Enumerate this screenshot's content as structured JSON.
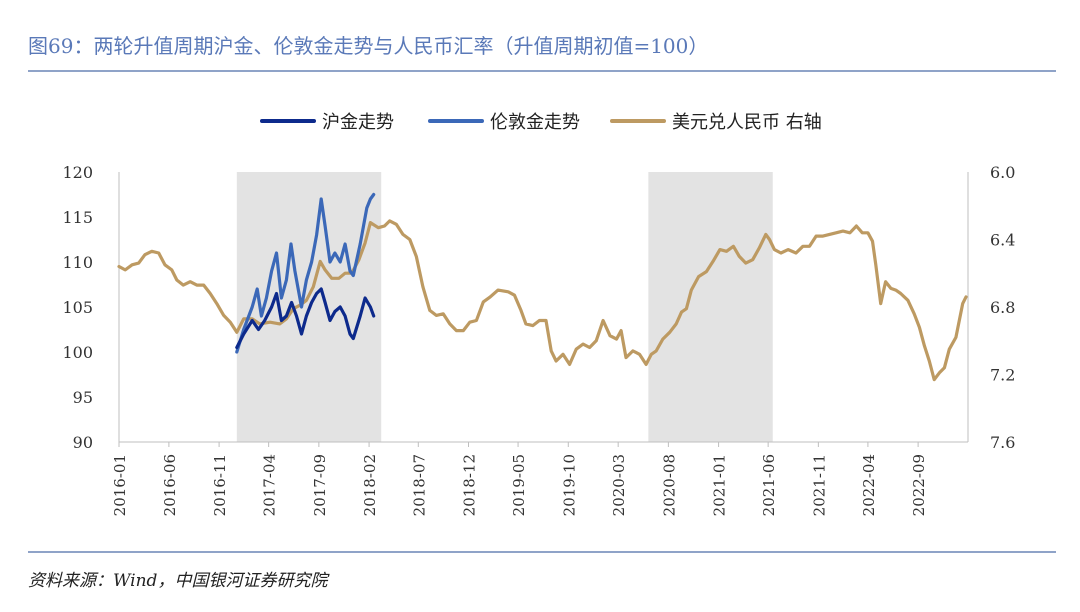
{
  "title": "图69：两轮升值周期沪金、伦敦金走势与人民币汇率（升值周期初值=100）",
  "source": "资料来源：Wind，中国银河证券研究院",
  "colors": {
    "sge": "#0d2a8c",
    "lbma": "#3b68b8",
    "usdcny": "#bd9a62",
    "shade": "#e3e3e3",
    "axis": "#bfbfbf",
    "rule": "#8fa3c8",
    "title": "#5a79b8"
  },
  "chart_data": {
    "type": "line",
    "legend": [
      "沪金走势",
      "伦敦金走势",
      "美元兑人民币 右轴"
    ],
    "x_ticks": [
      "2016-01",
      "2016-06",
      "2016-11",
      "2017-04",
      "2017-09",
      "2018-02",
      "2018-07",
      "2018-12",
      "2019-05",
      "2019-10",
      "2020-03",
      "2020-08",
      "2021-01",
      "2021-06",
      "2021-11",
      "2022-04",
      "2022-09"
    ],
    "y_left": {
      "range": [
        90,
        120
      ],
      "ticks": [
        "90",
        "95",
        "100",
        "105",
        "110",
        "115",
        "120"
      ]
    },
    "y_right": {
      "range": [
        7.6,
        6.0
      ],
      "inverted": true,
      "ticks": [
        "6.0",
        "6.4",
        "6.8",
        "7.2",
        "7.6"
      ]
    },
    "shaded_periods": [
      {
        "start": "2016-12-25",
        "end": "2018-03-10"
      },
      {
        "start": "2020-06-01",
        "end": "2021-06-15"
      }
    ],
    "series": [
      {
        "name": "沪金走势",
        "axis": "left",
        "points": [
          [
            "2016-12-25",
            100.5
          ],
          [
            "2017-01-15",
            102
          ],
          [
            "2017-02-10",
            103.5
          ],
          [
            "2017-03-01",
            102.5
          ],
          [
            "2017-03-20",
            103.5
          ],
          [
            "2017-04-10",
            105
          ],
          [
            "2017-04-25",
            106.5
          ],
          [
            "2017-05-10",
            103.5
          ],
          [
            "2017-05-25",
            104
          ],
          [
            "2017-06-10",
            105.5
          ],
          [
            "2017-06-25",
            104
          ],
          [
            "2017-07-10",
            102
          ],
          [
            "2017-07-25",
            104
          ],
          [
            "2017-08-10",
            105.5
          ],
          [
            "2017-08-25",
            106.5
          ],
          [
            "2017-09-08",
            107
          ],
          [
            "2017-09-20",
            105.5
          ],
          [
            "2017-10-05",
            103.5
          ],
          [
            "2017-10-20",
            104.5
          ],
          [
            "2017-11-05",
            105
          ],
          [
            "2017-11-20",
            104
          ],
          [
            "2017-12-05",
            102
          ],
          [
            "2017-12-15",
            101.5
          ],
          [
            "2018-01-05",
            104
          ],
          [
            "2018-01-20",
            106
          ],
          [
            "2018-02-05",
            105
          ],
          [
            "2018-02-15",
            104
          ]
        ]
      },
      {
        "name": "伦敦金走势",
        "axis": "left",
        "points": [
          [
            "2016-12-25",
            100
          ],
          [
            "2017-01-15",
            102.5
          ],
          [
            "2017-02-10",
            105
          ],
          [
            "2017-02-25",
            107
          ],
          [
            "2017-03-10",
            104
          ],
          [
            "2017-03-25",
            106
          ],
          [
            "2017-04-10",
            109
          ],
          [
            "2017-04-25",
            111
          ],
          [
            "2017-05-10",
            106
          ],
          [
            "2017-05-25",
            108
          ],
          [
            "2017-06-08",
            112
          ],
          [
            "2017-06-20",
            109
          ],
          [
            "2017-07-10",
            105
          ],
          [
            "2017-07-25",
            108
          ],
          [
            "2017-08-10",
            110
          ],
          [
            "2017-08-25",
            113
          ],
          [
            "2017-09-08",
            117
          ],
          [
            "2017-09-20",
            114
          ],
          [
            "2017-10-05",
            110
          ],
          [
            "2017-10-20",
            111
          ],
          [
            "2017-11-05",
            110
          ],
          [
            "2017-11-20",
            112
          ],
          [
            "2017-12-05",
            109
          ],
          [
            "2017-12-15",
            108.5
          ],
          [
            "2018-01-05",
            112
          ],
          [
            "2018-01-15",
            114
          ],
          [
            "2018-01-25",
            116
          ],
          [
            "2018-02-05",
            117
          ],
          [
            "2018-02-15",
            117.5
          ]
        ]
      },
      {
        "name": "美元兑人民币 右轴",
        "axis": "right",
        "points": [
          [
            "2016-01-01",
            6.56
          ],
          [
            "2016-01-20",
            6.58
          ],
          [
            "2016-02-10",
            6.55
          ],
          [
            "2016-03-01",
            6.54
          ],
          [
            "2016-03-20",
            6.49
          ],
          [
            "2016-04-10",
            6.47
          ],
          [
            "2016-05-01",
            6.48
          ],
          [
            "2016-05-20",
            6.55
          ],
          [
            "2016-06-10",
            6.58
          ],
          [
            "2016-06-25",
            6.64
          ],
          [
            "2016-07-15",
            6.67
          ],
          [
            "2016-08-05",
            6.65
          ],
          [
            "2016-08-25",
            6.67
          ],
          [
            "2016-09-15",
            6.67
          ],
          [
            "2016-10-05",
            6.72
          ],
          [
            "2016-10-25",
            6.78
          ],
          [
            "2016-11-15",
            6.85
          ],
          [
            "2016-12-05",
            6.89
          ],
          [
            "2016-12-25",
            6.95
          ],
          [
            "2017-01-15",
            6.87
          ],
          [
            "2017-02-10",
            6.87
          ],
          [
            "2017-03-05",
            6.9
          ],
          [
            "2017-04-05",
            6.89
          ],
          [
            "2017-05-05",
            6.9
          ],
          [
            "2017-05-25",
            6.87
          ],
          [
            "2017-06-15",
            6.81
          ],
          [
            "2017-07-05",
            6.79
          ],
          [
            "2017-07-25",
            6.76
          ],
          [
            "2017-08-15",
            6.68
          ],
          [
            "2017-09-05",
            6.53
          ],
          [
            "2017-09-20",
            6.58
          ],
          [
            "2017-10-10",
            6.63
          ],
          [
            "2017-11-01",
            6.63
          ],
          [
            "2017-11-20",
            6.6
          ],
          [
            "2017-12-10",
            6.6
          ],
          [
            "2018-01-01",
            6.52
          ],
          [
            "2018-01-20",
            6.42
          ],
          [
            "2018-02-05",
            6.3
          ],
          [
            "2018-03-01",
            6.33
          ],
          [
            "2018-03-20",
            6.32
          ],
          [
            "2018-04-05",
            6.29
          ],
          [
            "2018-04-25",
            6.31
          ],
          [
            "2018-05-15",
            6.37
          ],
          [
            "2018-06-05",
            6.4
          ],
          [
            "2018-06-25",
            6.5
          ],
          [
            "2018-07-15",
            6.68
          ],
          [
            "2018-08-05",
            6.82
          ],
          [
            "2018-08-25",
            6.85
          ],
          [
            "2018-09-15",
            6.84
          ],
          [
            "2018-10-05",
            6.9
          ],
          [
            "2018-10-25",
            6.94
          ],
          [
            "2018-11-15",
            6.94
          ],
          [
            "2018-12-05",
            6.89
          ],
          [
            "2018-12-25",
            6.88
          ],
          [
            "2019-01-15",
            6.77
          ],
          [
            "2019-02-05",
            6.74
          ],
          [
            "2019-03-01",
            6.7
          ],
          [
            "2019-04-01",
            6.71
          ],
          [
            "2019-04-20",
            6.73
          ],
          [
            "2019-05-10",
            6.82
          ],
          [
            "2019-05-25",
            6.9
          ],
          [
            "2019-06-15",
            6.91
          ],
          [
            "2019-07-05",
            6.88
          ],
          [
            "2019-07-25",
            6.88
          ],
          [
            "2019-08-10",
            7.06
          ],
          [
            "2019-08-25",
            7.12
          ],
          [
            "2019-09-15",
            7.08
          ],
          [
            "2019-10-05",
            7.14
          ],
          [
            "2019-10-25",
            7.05
          ],
          [
            "2019-11-15",
            7.02
          ],
          [
            "2019-12-05",
            7.04
          ],
          [
            "2019-12-25",
            7.0
          ],
          [
            "2020-01-15",
            6.88
          ],
          [
            "2020-02-05",
            6.97
          ],
          [
            "2020-02-25",
            6.99
          ],
          [
            "2020-03-10",
            6.94
          ],
          [
            "2020-03-25",
            7.1
          ],
          [
            "2020-04-15",
            7.06
          ],
          [
            "2020-05-05",
            7.08
          ],
          [
            "2020-05-25",
            7.14
          ],
          [
            "2020-06-10",
            7.08
          ],
          [
            "2020-06-25",
            7.06
          ],
          [
            "2020-07-15",
            6.99
          ],
          [
            "2020-08-05",
            6.95
          ],
          [
            "2020-08-25",
            6.9
          ],
          [
            "2020-09-10",
            6.83
          ],
          [
            "2020-09-25",
            6.81
          ],
          [
            "2020-10-10",
            6.7
          ],
          [
            "2020-11-01",
            6.62
          ],
          [
            "2020-11-25",
            6.59
          ],
          [
            "2020-12-15",
            6.53
          ],
          [
            "2021-01-05",
            6.46
          ],
          [
            "2021-01-25",
            6.47
          ],
          [
            "2021-02-15",
            6.44
          ],
          [
            "2021-03-05",
            6.5
          ],
          [
            "2021-03-25",
            6.54
          ],
          [
            "2021-04-15",
            6.52
          ],
          [
            "2021-05-05",
            6.45
          ],
          [
            "2021-05-25",
            6.37
          ],
          [
            "2021-06-05",
            6.4
          ],
          [
            "2021-06-20",
            6.46
          ],
          [
            "2021-07-10",
            6.48
          ],
          [
            "2021-08-01",
            6.46
          ],
          [
            "2021-08-25",
            6.48
          ],
          [
            "2021-09-15",
            6.44
          ],
          [
            "2021-10-05",
            6.44
          ],
          [
            "2021-10-25",
            6.38
          ],
          [
            "2021-11-15",
            6.38
          ],
          [
            "2021-12-05",
            6.37
          ],
          [
            "2021-12-25",
            6.36
          ],
          [
            "2022-01-15",
            6.35
          ],
          [
            "2022-02-05",
            6.36
          ],
          [
            "2022-02-25",
            6.32
          ],
          [
            "2022-03-15",
            6.36
          ],
          [
            "2022-04-01",
            6.36
          ],
          [
            "2022-04-15",
            6.41
          ],
          [
            "2022-04-25",
            6.55
          ],
          [
            "2022-05-10",
            6.78
          ],
          [
            "2022-05-25",
            6.65
          ],
          [
            "2022-06-10",
            6.69
          ],
          [
            "2022-06-25",
            6.7
          ],
          [
            "2022-07-10",
            6.72
          ],
          [
            "2022-08-01",
            6.76
          ],
          [
            "2022-08-20",
            6.84
          ],
          [
            "2022-09-05",
            6.92
          ],
          [
            "2022-09-20",
            7.03
          ],
          [
            "2022-10-05",
            7.12
          ],
          [
            "2022-10-20",
            7.23
          ],
          [
            "2022-11-05",
            7.19
          ],
          [
            "2022-11-20",
            7.16
          ],
          [
            "2022-12-05",
            7.05
          ],
          [
            "2022-12-25",
            6.98
          ],
          [
            "2023-01-15",
            6.78
          ],
          [
            "2023-01-25",
            6.74
          ]
        ]
      }
    ]
  }
}
